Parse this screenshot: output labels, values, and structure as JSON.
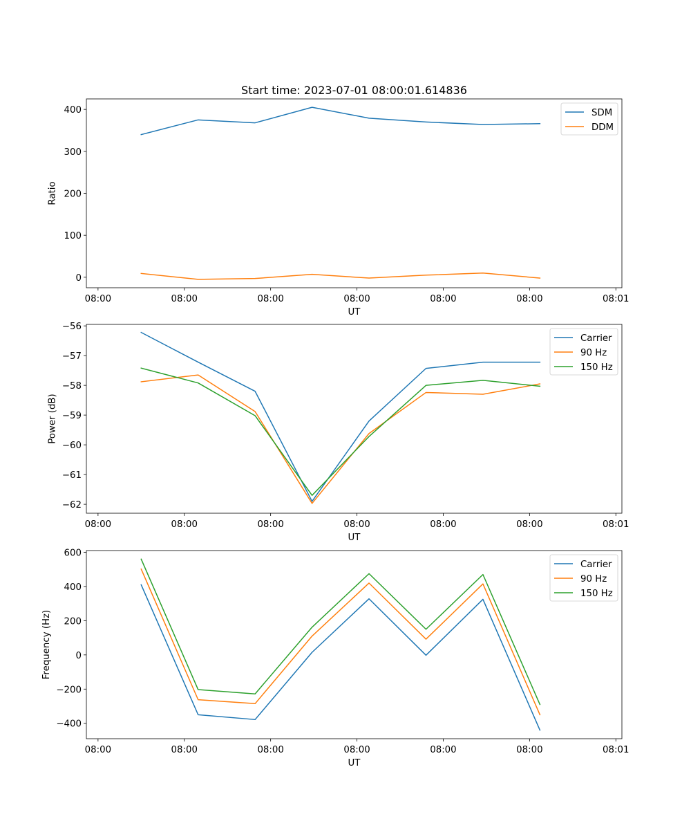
{
  "figure_title": "Start time: 2023-07-01 08:00:01.614836",
  "colors": {
    "blue": "#1f77b4",
    "orange": "#ff7f0e",
    "green": "#2ca02c"
  },
  "chart_data": [
    {
      "type": "line",
      "title": "Start time: 2023-07-01 08:00:01.614836",
      "xlabel": "UT",
      "ylabel": "Ratio",
      "x": [
        0.5,
        1.16,
        1.82,
        2.48,
        3.14,
        3.8,
        4.46,
        5.12
      ],
      "xlim": [
        -0.135,
        6.07
      ],
      "x_ticks": [
        0,
        1,
        2,
        3,
        4,
        5,
        6
      ],
      "x_tick_labels": [
        "08:00",
        "08:00",
        "08:00",
        "08:00",
        "08:00",
        "08:00",
        "08:01"
      ],
      "ylim": [
        -25,
        425
      ],
      "y_ticks": [
        0,
        100,
        200,
        300,
        400
      ],
      "y_tick_labels": [
        "0",
        "100",
        "200",
        "300",
        "400"
      ],
      "legend_position": "top-right",
      "series": [
        {
          "name": "SDM",
          "color": "#1f77b4",
          "values": [
            340,
            375,
            368,
            405,
            379,
            370,
            364,
            366
          ]
        },
        {
          "name": "DDM",
          "color": "#ff7f0e",
          "values": [
            9,
            -5,
            -3,
            7,
            -2,
            5,
            10,
            -2
          ]
        }
      ]
    },
    {
      "type": "line",
      "title": "",
      "xlabel": "UT",
      "ylabel": "Power (dB)",
      "x": [
        0.5,
        1.16,
        1.82,
        2.48,
        3.14,
        3.8,
        4.46,
        5.12
      ],
      "xlim": [
        -0.135,
        6.07
      ],
      "x_ticks": [
        0,
        1,
        2,
        3,
        4,
        5,
        6
      ],
      "x_tick_labels": [
        "08:00",
        "08:00",
        "08:00",
        "08:00",
        "08:00",
        "08:00",
        "08:01"
      ],
      "ylim": [
        -62.3,
        -55.95
      ],
      "y_ticks": [
        -62,
        -61,
        -60,
        -59,
        -58,
        -57,
        -56
      ],
      "y_tick_labels": [
        "−62",
        "−61",
        "−60",
        "−59",
        "−58",
        "−57",
        "−56"
      ],
      "legend_position": "top-right",
      "series": [
        {
          "name": "Carrier",
          "color": "#1f77b4",
          "values": [
            -56.22,
            -57.22,
            -58.2,
            -61.9,
            -59.2,
            -57.43,
            -57.22,
            -57.22
          ]
        },
        {
          "name": "90 Hz",
          "color": "#ff7f0e",
          "values": [
            -57.88,
            -57.65,
            -58.88,
            -61.97,
            -59.62,
            -58.24,
            -58.3,
            -57.95
          ]
        },
        {
          "name": "150 Hz",
          "color": "#2ca02c",
          "values": [
            -57.42,
            -57.92,
            -59.02,
            -61.7,
            -59.72,
            -58.0,
            -57.83,
            -58.03
          ]
        }
      ]
    },
    {
      "type": "line",
      "title": "",
      "xlabel": "UT",
      "ylabel": "Frequency (Hz)",
      "x": [
        0.5,
        1.16,
        1.82,
        2.48,
        3.14,
        3.8,
        4.46,
        5.12
      ],
      "xlim": [
        -0.135,
        6.07
      ],
      "x_ticks": [
        0,
        1,
        2,
        3,
        4,
        5,
        6
      ],
      "x_tick_labels": [
        "08:00",
        "08:00",
        "08:00",
        "08:00",
        "08:00",
        "08:00",
        "08:01"
      ],
      "ylim": [
        -490,
        610
      ],
      "y_ticks": [
        -400,
        -200,
        0,
        200,
        400,
        600
      ],
      "y_tick_labels": [
        "−400",
        "−200",
        "0",
        "200",
        "400",
        "600"
      ],
      "legend_position": "top-right",
      "series": [
        {
          "name": "Carrier",
          "color": "#1f77b4",
          "values": [
            410,
            -350,
            -378,
            15,
            328,
            -2,
            325,
            -440
          ]
        },
        {
          "name": "90 Hz",
          "color": "#ff7f0e",
          "values": [
            502,
            -262,
            -285,
            110,
            420,
            92,
            415,
            -350
          ]
        },
        {
          "name": "150 Hz",
          "color": "#2ca02c",
          "values": [
            560,
            -203,
            -228,
            162,
            475,
            150,
            470,
            -290
          ]
        }
      ]
    }
  ]
}
